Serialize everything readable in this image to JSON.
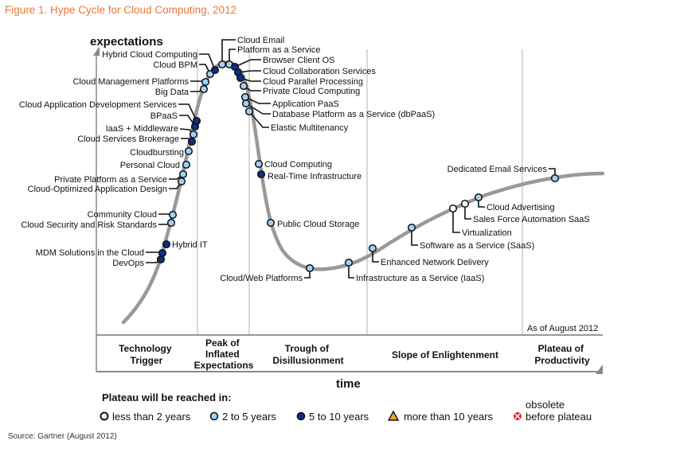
{
  "figure_title": "Figure 1. Hype Cycle for Cloud Computing, 2012",
  "source": "Source: Gartner (August 2012)",
  "chart_data": {
    "type": "line",
    "title": "Hype Cycle for Cloud Computing, 2012",
    "ylabel": "expectations",
    "xlabel": "time",
    "as_of": "As of August 2012",
    "phases": [
      {
        "name": "technology-trigger",
        "lines": [
          "Technology",
          "Trigger"
        ]
      },
      {
        "name": "peak",
        "lines": [
          "Peak of",
          "Inflated",
          "Expectations"
        ]
      },
      {
        "name": "trough",
        "lines": [
          "Trough of",
          "Disillusionment"
        ]
      },
      {
        "name": "slope",
        "lines": [
          "Slope of Enlightenment"
        ]
      },
      {
        "name": "plateau",
        "lines": [
          "Plateau of",
          "Productivity"
        ]
      }
    ],
    "legend": {
      "title": "Plateau will be reached in:",
      "items": [
        {
          "key": "lt2",
          "label": "less than 2 years",
          "shape": "circle",
          "fill": "#ffffff"
        },
        {
          "key": "2to5",
          "label": "2 to 5 years",
          "shape": "circle",
          "fill": "#9fd0f5"
        },
        {
          "key": "5to10",
          "label": "5 to 10 years",
          "shape": "circle",
          "fill": "#0d2f86"
        },
        {
          "key": "gt10",
          "label": "more than 10 years",
          "shape": "triangle",
          "fill": "#f2a22b"
        },
        {
          "key": "obsolete",
          "label_lines": [
            "obsolete",
            "before plateau"
          ],
          "shape": "obsolete",
          "fill": "#e0262a"
        }
      ]
    },
    "technologies": [
      {
        "name": "DevOps",
        "phase": "Technology Trigger",
        "plateau": "5to10"
      },
      {
        "name": "MDM Solutions in the Cloud",
        "phase": "Technology Trigger",
        "plateau": "5to10"
      },
      {
        "name": "Hybrid IT",
        "phase": "Technology Trigger",
        "plateau": "5to10"
      },
      {
        "name": "Cloud Security and Risk Standards",
        "phase": "Technology Trigger",
        "plateau": "2to5"
      },
      {
        "name": "Community Cloud",
        "phase": "Technology Trigger",
        "plateau": "2to5"
      },
      {
        "name": "Cloud-Optimized Application Design",
        "phase": "Technology Trigger",
        "plateau": "2to5"
      },
      {
        "name": "Private Platform as a Service",
        "phase": "Technology Trigger",
        "plateau": "2to5"
      },
      {
        "name": "Personal Cloud",
        "phase": "Technology Trigger",
        "plateau": "2to5"
      },
      {
        "name": "Cloudbursting",
        "phase": "Technology Trigger",
        "plateau": "2to5"
      },
      {
        "name": "Cloud Services Brokerage",
        "phase": "Technology Trigger",
        "plateau": "5to10"
      },
      {
        "name": "IaaS + Middleware",
        "phase": "Technology Trigger",
        "plateau": "2to5"
      },
      {
        "name": "BPaaS",
        "phase": "Technology Trigger",
        "plateau": "5to10"
      },
      {
        "name": "Cloud Application Development Services",
        "phase": "Technology Trigger",
        "plateau": "5to10"
      },
      {
        "name": "Big Data",
        "phase": "Peak of Inflated Expectations",
        "plateau": "2to5"
      },
      {
        "name": "Cloud Management Platforms",
        "phase": "Peak of Inflated Expectations",
        "plateau": "2to5"
      },
      {
        "name": "Cloud BPM",
        "phase": "Peak of Inflated Expectations",
        "plateau": "2to5"
      },
      {
        "name": "Hybrid Cloud Computing",
        "phase": "Peak of Inflated Expectations",
        "plateau": "5to10"
      },
      {
        "name": "Cloud Email",
        "phase": "Peak of Inflated Expectations",
        "plateau": "2to5"
      },
      {
        "name": "Platform as a Service",
        "phase": "Peak of Inflated Expectations",
        "plateau": "2to5"
      },
      {
        "name": "Browser Client OS",
        "phase": "Peak of Inflated Expectations",
        "plateau": "5to10"
      },
      {
        "name": "Cloud Collaboration Services",
        "phase": "Peak of Inflated Expectations",
        "plateau": "5to10"
      },
      {
        "name": "Cloud Parallel Processing",
        "phase": "Peak of Inflated Expectations",
        "plateau": "5to10"
      },
      {
        "name": "Private Cloud Computing",
        "phase": "Peak of Inflated Expectations",
        "plateau": "2to5"
      },
      {
        "name": "Application PaaS",
        "phase": "Peak of Inflated Expectations",
        "plateau": "2to5"
      },
      {
        "name": "Database Platform as a Service (dbPaaS)",
        "phase": "Peak of Inflated Expectations",
        "plateau": "2to5"
      },
      {
        "name": "Elastic Multitenancy",
        "phase": "Peak of Inflated Expectations",
        "plateau": "2to5"
      },
      {
        "name": "Cloud Computing",
        "phase": "Trough of Disillusionment",
        "plateau": "2to5"
      },
      {
        "name": "Real-Time Infrastructure",
        "phase": "Trough of Disillusionment",
        "plateau": "5to10"
      },
      {
        "name": "Public Cloud Storage",
        "phase": "Trough of Disillusionment",
        "plateau": "2to5"
      },
      {
        "name": "Cloud/Web Platforms",
        "phase": "Trough of Disillusionment",
        "plateau": "2to5"
      },
      {
        "name": "Infrastructure as a Service (IaaS)",
        "phase": "Slope of Enlightenment",
        "plateau": "2to5"
      },
      {
        "name": "Enhanced Network Delivery",
        "phase": "Slope of Enlightenment",
        "plateau": "2to5"
      },
      {
        "name": "Software as a Service (SaaS)",
        "phase": "Slope of Enlightenment",
        "plateau": "2to5"
      },
      {
        "name": "Virtualization",
        "phase": "Slope of Enlightenment",
        "plateau": "lt2"
      },
      {
        "name": "Sales Force Automation SaaS",
        "phase": "Slope of Enlightenment",
        "plateau": "lt2"
      },
      {
        "name": "Cloud Advertising",
        "phase": "Slope of Enlightenment",
        "plateau": "2to5"
      },
      {
        "name": "Dedicated Email Services",
        "phase": "Slope of Enlightenment",
        "plateau": "2to5"
      }
    ]
  }
}
